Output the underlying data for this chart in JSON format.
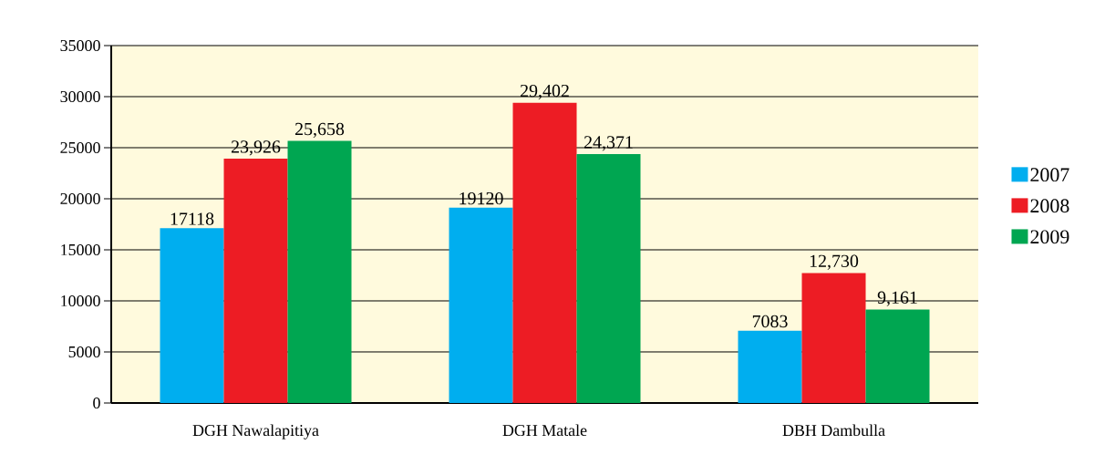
{
  "chart_data": {
    "type": "bar",
    "categories": [
      "DGH Nawalapitiya",
      "DGH Matale",
      "DBH Dambulla"
    ],
    "series": [
      {
        "name": "2007",
        "color": "#00aeef",
        "values": [
          17118,
          19120,
          7083
        ],
        "value_labels": [
          "17118",
          "19120",
          "7083"
        ]
      },
      {
        "name": "2008",
        "color": "#ed1c24",
        "values": [
          23926,
          29402,
          12730
        ],
        "value_labels": [
          "23,926",
          "29,402",
          "12,730"
        ]
      },
      {
        "name": "2009",
        "color": "#00a651",
        "values": [
          25658,
          24371,
          9161
        ],
        "value_labels": [
          "25,658",
          "24,371",
          "9,161"
        ]
      }
    ],
    "ylim": [
      0,
      35000
    ],
    "yticks": [
      0,
      5000,
      10000,
      15000,
      20000,
      25000,
      30000,
      35000
    ],
    "grid": "y",
    "legend": "right"
  }
}
